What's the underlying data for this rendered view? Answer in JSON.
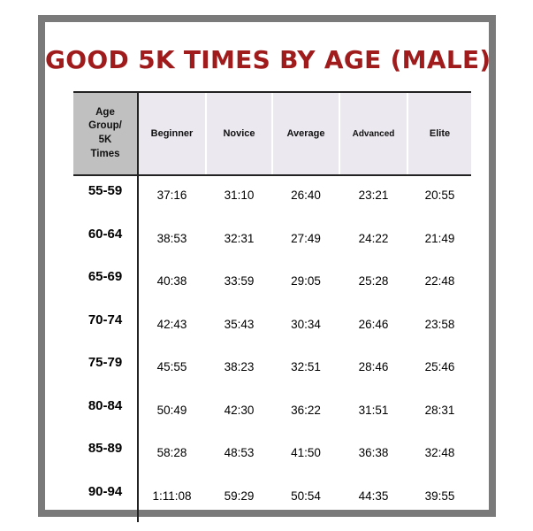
{
  "title": "GOOD 5K TIMES BY AGE (MALE)",
  "header": {
    "first_line1": "Age",
    "first_line2": "Group/",
    "first_line3": "5K",
    "first_line4": "Times",
    "columns": [
      "Beginner",
      "Novice",
      "Average",
      "Advanced",
      "Elite"
    ]
  },
  "rows": [
    {
      "age": "55-59",
      "values": [
        "37:16",
        "31:10",
        "26:40",
        "23:21",
        "20:55"
      ]
    },
    {
      "age": "60-64",
      "values": [
        "38:53",
        "32:31",
        "27:49",
        "24:22",
        "21:49"
      ]
    },
    {
      "age": "65-69",
      "values": [
        "40:38",
        "33:59",
        "29:05",
        "25:28",
        "22:48"
      ]
    },
    {
      "age": "70-74",
      "values": [
        "42:43",
        "35:43",
        "30:34",
        "26:46",
        "23:58"
      ]
    },
    {
      "age": "75-79",
      "values": [
        "45:55",
        "38:23",
        "32:51",
        "28:46",
        "25:46"
      ]
    },
    {
      "age": "80-84",
      "values": [
        "50:49",
        "42:30",
        "36:22",
        "31:51",
        "28:31"
      ]
    },
    {
      "age": "85-89",
      "values": [
        "58:28",
        "48:53",
        "41:50",
        "36:38",
        "32:48"
      ]
    },
    {
      "age": "90-94",
      "values": [
        "1:11:08",
        "59:29",
        "50:54",
        "44:35",
        "39:55"
      ]
    }
  ],
  "colors": {
    "title": "#a01c1c",
    "frame": "#7a7a7a",
    "header_bg": "#ece8ef",
    "header_first_bg": "#c0c0c0"
  }
}
